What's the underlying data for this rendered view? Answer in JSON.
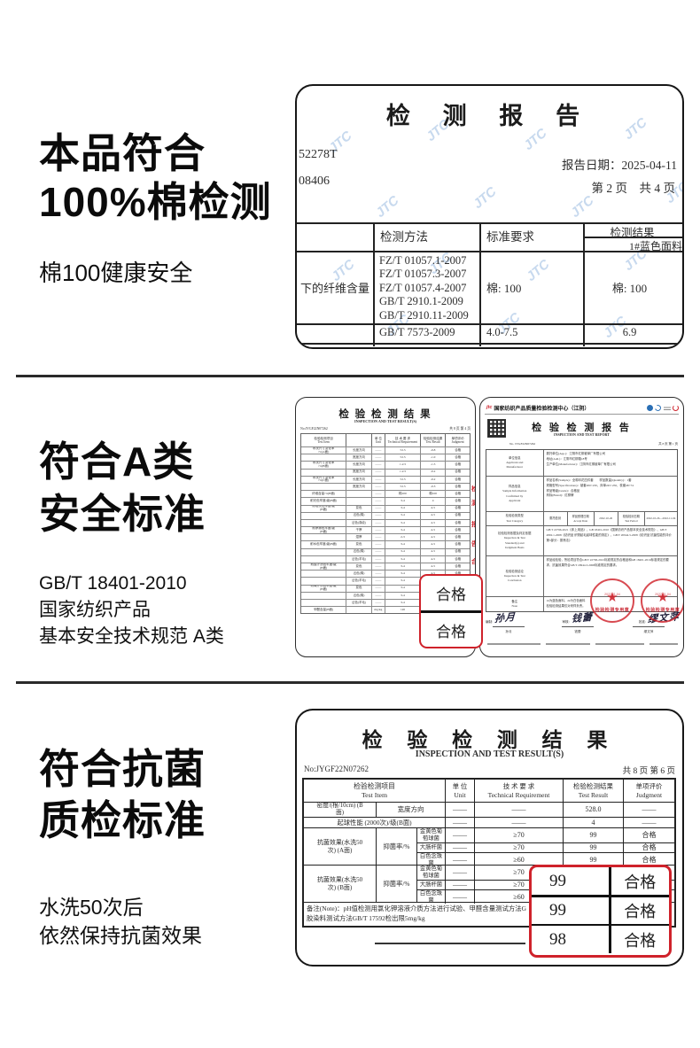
{
  "colors": {
    "accent_red": "#cf222b",
    "watermark_blue": "#bed3ec",
    "ink": "#161616"
  },
  "headings": {
    "s1": {
      "line1": "本品符合",
      "line2": "100%棉检测",
      "sub": "棉100健康安全"
    },
    "s2": {
      "line1": "符合A类",
      "line2": "安全标准",
      "sub1": "GB/T 18401-2010",
      "sub2": "国家纺织产品",
      "sub3": "基本安全技术规范 A类"
    },
    "s3": {
      "line1": "符合抗菌",
      "line2": "质检标准",
      "sub1": "水洗50次后",
      "sub2": "依然保持抗菌效果"
    }
  },
  "report_top": {
    "watermark": "JTC",
    "title": "检  测  报  告",
    "code1": "52278T",
    "code2": "08406",
    "date": "报告日期：2025-04-11",
    "pages": "第 2 页　共 4 页",
    "col_method": "检测方法",
    "col_req": "标准要求",
    "col_res": "检测结果",
    "col_res_sub": "1#蓝色面料",
    "row1_label": "下的纤维含量",
    "m1": "FZ/T 01057.1-2007",
    "m2": "FZ/T 01057.3-2007",
    "m3": "FZ/T 01057.4-2007",
    "m4": "GB/T 2910.1-2009",
    "m5": "GB/T 2910.11-2009",
    "row1_req": "棉: 100",
    "row1_res": "棉: 100",
    "row2_method": "GB/T 7573-2009",
    "row2_req": "4.0-7.5",
    "row2_res": "6.9"
  },
  "report_a": {
    "title": "检 验 检 测 结 果",
    "subtitle": "INSPECTION AND TEST RESULT(S)",
    "no": "No:JYGF22N07262",
    "pages": "共 8 页 第 4 页",
    "h1": "检验检测项目\nTest Item",
    "h2": "单 位\nUnit",
    "h3": "技 术 要 求\nTechnical Requirement",
    "h4": "检验检测结果\nTest Result",
    "h5": "单项评价\nJudgment",
    "table": {
      "widths": [
        "27%",
        "15%",
        "8%",
        "21%",
        "15%",
        "14%"
      ],
      "rows": [
        [
          "水洗尺寸变化率\n/%(A面)",
          "长度方向",
          "——",
          "±2.5",
          "-0.8",
          "合格"
        ],
        [
          "",
          "宽度方向",
          "——",
          "±2.5",
          "-1.0",
          "合格"
        ],
        [
          "水洗尺寸变化率\n/%(B面)",
          "长度方向",
          "——",
          "≥-2.5",
          "-1.5",
          "合格"
        ],
        [
          "",
          "宽度方向",
          "——",
          "≥-2.5",
          "-0.2",
          "合格"
        ],
        [
          "水洗尺寸变化率\n/%(C面)",
          "长度方向",
          "——",
          "±2.5",
          "-0.2",
          "合格"
        ],
        [
          "",
          "宽度方向",
          "——",
          "±2.5",
          "-0.3",
          "合格"
        ],
        [
          "纤维含量/%(B面)",
          "",
          "——",
          "棉100",
          "棉100",
          "合格"
        ],
        [
          "耐光色牢度/级(B面)",
          "",
          "——",
          "3-4",
          "4",
          "合格"
        ],
        [
          "耐皂洗色牢度/级\n(B面)",
          "变色",
          "——",
          "3-4",
          "4-5",
          "合格"
        ],
        [
          "",
          "沾色(棉)",
          "——",
          "3-4",
          "4-5",
          "合格"
        ],
        [
          "",
          "沾色(涤纶)",
          "——",
          "3-4",
          "4-5",
          "合格"
        ],
        [
          "耐摩擦色牢度/级\n(B面)",
          "干摩",
          "——",
          "3-4",
          "4-5",
          "合格"
        ],
        [
          "",
          "湿摩",
          "——",
          "2-3",
          "4-5",
          "合格"
        ],
        [
          "耐水色牢度/级(B面)",
          "变色",
          "——",
          "3-4",
          "4-5",
          "合格"
        ],
        [
          "",
          "沾色(棉)",
          "——",
          "3-4",
          "4-5",
          "合格"
        ],
        [
          "",
          "沾色(羊毛)",
          "——",
          "3-4",
          "4-5",
          "合格"
        ],
        [
          "耐酸汗渍色牢度/级\n(B面)",
          "变色",
          "——",
          "3-4",
          "4-5",
          "合格"
        ],
        [
          "",
          "沾色(棉)",
          "——",
          "3-4",
          "4-5",
          "合格"
        ],
        [
          "",
          "沾色(羊毛)",
          "——",
          "3-4",
          "4-5",
          "合格"
        ],
        [
          "耐碱汗渍色牢度/级\n(B面)",
          "变色",
          "——",
          "3-4",
          "4-5",
          "合格"
        ],
        [
          "",
          "沾色(棉)",
          "——",
          "3-4",
          "4-5",
          "合格"
        ],
        [
          "",
          "沾色(羊毛)",
          "——",
          "3-4",
          "4-5",
          "合格"
        ],
        [
          "甲醛含量(B面)",
          "",
          "mg/kg",
          "≤20",
          "未检出",
          "合格"
        ]
      ]
    },
    "pass1": "合格",
    "pass2": "合格",
    "edge_marks": [
      "检",
      "测",
      "报",
      "告",
      "合"
    ]
  },
  "report_b": {
    "logo": "jtc",
    "org": "国家纺织产品质量检验检测中心（江阴）",
    "title": "检 验 检 测 报 告",
    "subtitle": "INSPECTION AND TEST REPORT",
    "no": "No. JYGF22N07262",
    "pages": "共 8 页 第 1 页",
    "row1_label": "单位信息\nApplicant and\nManufacturer",
    "row1_content": "委托单位(App.)：江阴市红柳被单厂有限公司\n地址(Add.)：江阴市红柳路18号\n生产单位(Manufacturer)：江阴市红柳被单厂有限公司",
    "row2_label": "样品信息\nSample Information\nConfirmed by\nApplicant",
    "row2_content": "样品名称(Sample)：全棉印花四件套　　样品数量(Quantity)：1套\n规格型号(Specifications)：被套200×230，床单245×250，枕套48×74\n样品等级(Grade)：合格品\n商标(Brand)：红柳牌",
    "row3_label": "检验检测类型\nTest Category",
    "type_cells": [
      "委托检测",
      "样品受理日期\nAccept Date",
      "2022-10-26",
      "检验检测日期\nTest Period",
      "2022-10-26—2022-11-04"
    ],
    "row4_label": "检验检测依据及判定依据\nInspection & Test\nStandard(s) and\nJudgment Basis",
    "row4_content": "GB/T 22796-2021《床上用品》、GB 18401-2010《国家纺织产品基本安全技术规范》、GB/T 4802.1-2008《纺织品 织物起毛起球性能的测定》、GB/T 20944.3-2008《纺织品 抗菌性能的评价 第3部分：振荡法》",
    "row5_label": "检验检测结论\nInspection & Test\nConclusion",
    "row5_content": "样品经检验，所检项目符合GB/T 22796-2021标准规定的合格品和GB 18401-2010标准规定的要求，抗菌效果符合GB/T 20944.3-2008标准规定的要求。",
    "row6_label": "备注\nNote",
    "row6_content": "1#为蓝色面料，2#为白色面料\n检验检测结果仅对来样负责。",
    "stamp_text": "检验检测专用章",
    "stamp_date": "2022-11-04",
    "sign1_label": "编制:",
    "sign1_name": "孙月",
    "sign2_label": "审核:",
    "sign2_name": "钱蕾",
    "sign3_label": "批准:",
    "sign3_name": "缪文萍"
  },
  "report_c": {
    "title": "检 验 检 测 结 果",
    "subtitle": "INSPECTION AND TEST RESULT(S)",
    "no": "No:JYGF22N07262",
    "pages": "共 8 页 第 6 页",
    "h_item": "检验检测项目\nTest Item",
    "h_unit": "单 位\nUnit",
    "h_req": "技 术 要 求\nTechnical Requirement",
    "h_res": "检验检测结果\nTest Result",
    "h_jud": "单项评价\nJudgment",
    "density": {
      "label": "密度/(根/10cm) (B\n面)",
      "sub": "宽度方向",
      "unit": "——",
      "req": "——",
      "res": "528.0",
      "jud": "——"
    },
    "pilling": {
      "label": "起球性能 (2000次)/级(B面)",
      "unit": "——",
      "req": "——",
      "res": "4",
      "jud": "——"
    },
    "groupA": {
      "label": "抗菌效果(水洗50\n次) (A面)",
      "mid": "抑菌率/%",
      "items": [
        {
          "name": "金黄色葡\n萄球菌",
          "unit": "——",
          "req": "≥70",
          "res": "99",
          "jud": "合格"
        },
        {
          "name": "大肠杆菌",
          "unit": "——",
          "req": "≥70",
          "res": "99",
          "jud": "合格"
        },
        {
          "name": "白色念珠\n菌",
          "unit": "——",
          "req": "≥60",
          "res": "99",
          "jud": "合格"
        }
      ]
    },
    "groupB": {
      "label": "抗菌效果(水洗50\n次) (B面)",
      "mid": "抑菌率/%",
      "items": [
        {
          "name": "金黄色葡\n萄球菌",
          "unit": "——",
          "req": "≥70",
          "res": "99",
          "jud": "合格"
        },
        {
          "name": "大肠杆菌",
          "unit": "——",
          "req": "≥70",
          "res": "99",
          "jud": "合格"
        },
        {
          "name": "白色念珠\n菌",
          "unit": "——",
          "req": "≥60",
          "res": "98",
          "jud": "合格"
        }
      ]
    },
    "note1": "备注(Note)：pH值检测用氯化钾溶液介质方法进行试验、甲醛含量测试方法G",
    "note2": "胶染料测试方法GB/T 17592检出限5mg/kg",
    "callout": [
      [
        "99",
        "合格"
      ],
      [
        "99",
        "合格"
      ],
      [
        "98",
        "合格"
      ]
    ]
  }
}
